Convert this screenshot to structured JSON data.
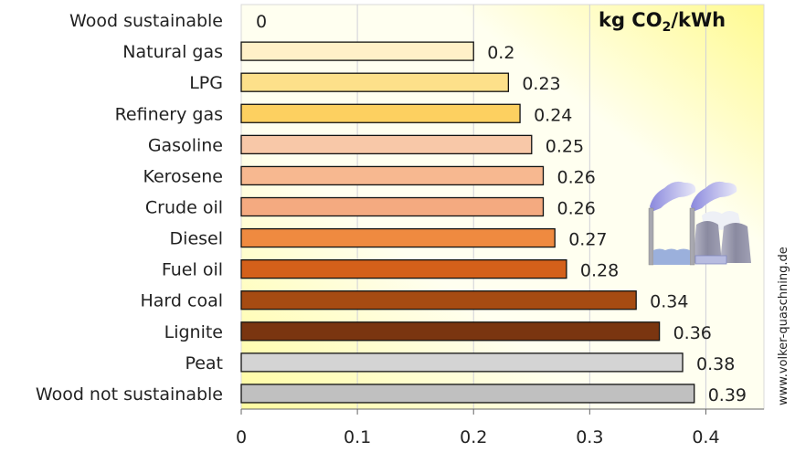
{
  "chart_data": {
    "type": "bar",
    "orientation": "horizontal",
    "title": "kg CO2/kWh",
    "title_parts": {
      "pre": "kg CO",
      "sub": "2",
      "post": "/kWh"
    },
    "categories": [
      "Wood sustainable",
      "Natural gas",
      "LPG",
      "Refinery gas",
      "Gasoline",
      "Kerosene",
      "Crude oil",
      "Diesel",
      "Fuel oil",
      "Hard coal",
      "Lignite",
      "Peat",
      "Wood not sustainable"
    ],
    "values": [
      0,
      0.2,
      0.23,
      0.24,
      0.25,
      0.26,
      0.26,
      0.27,
      0.28,
      0.34,
      0.36,
      0.38,
      0.39
    ],
    "labels": [
      "0",
      "0.2",
      "0.23",
      "0.24",
      "0.25",
      "0.26",
      "0.26",
      "0.27",
      "0.28",
      "0.34",
      "0.36",
      "0.38",
      "0.39"
    ],
    "colors": [
      "#fff8e0",
      "#fff0c8",
      "#fde08a",
      "#fdd060",
      "#f8c8a8",
      "#f7b890",
      "#f4aa80",
      "#ef8a40",
      "#d4601a",
      "#a64b12",
      "#7a3510",
      "#d4d4d4",
      "#c0c0c0"
    ],
    "xlim": [
      0,
      0.45
    ],
    "xticks": [
      "0",
      "0.1",
      "0.2",
      "0.3",
      "0.4"
    ],
    "grid": true
  },
  "credit": "www.volker-quaschning.de",
  "icon": "power-plant-icon"
}
